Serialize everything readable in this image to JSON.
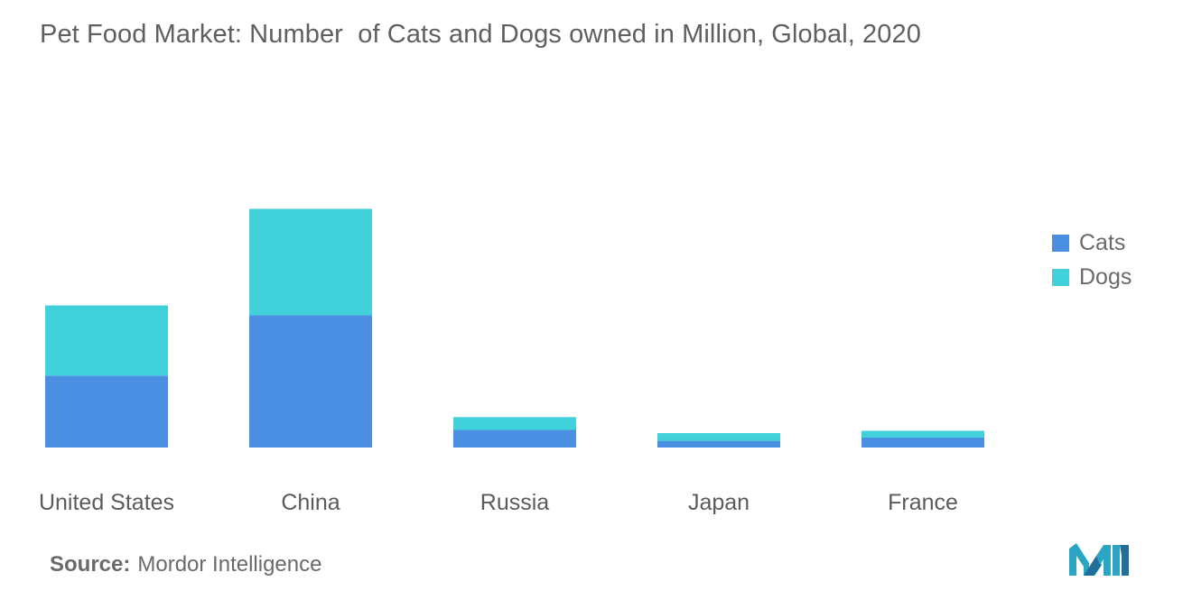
{
  "chart_data": {
    "type": "bar",
    "stacked": true,
    "title": "Pet Food Market: Number  of Cats and Dogs owned in Million, Global, 2020",
    "categories": [
      "United States",
      "China",
      "Russia",
      "Japan",
      "France"
    ],
    "series": [
      {
        "name": "Cats",
        "values": [
          58.4,
          107.5,
          14.3,
          5.4,
          8.1
        ],
        "color": "#4a8fe1"
      },
      {
        "name": "Dogs",
        "values": [
          57.1,
          86.5,
          10.4,
          6.3,
          5.5
        ],
        "color": "#41d1da"
      }
    ],
    "xlabel": "",
    "ylabel": "",
    "ylim": [
      0,
      220
    ],
    "grid": false,
    "legend_position": "right"
  },
  "source": {
    "label": "Source:",
    "text": "Mordor Intelligence"
  },
  "logo_icon": "mordor-intelligence-logo"
}
